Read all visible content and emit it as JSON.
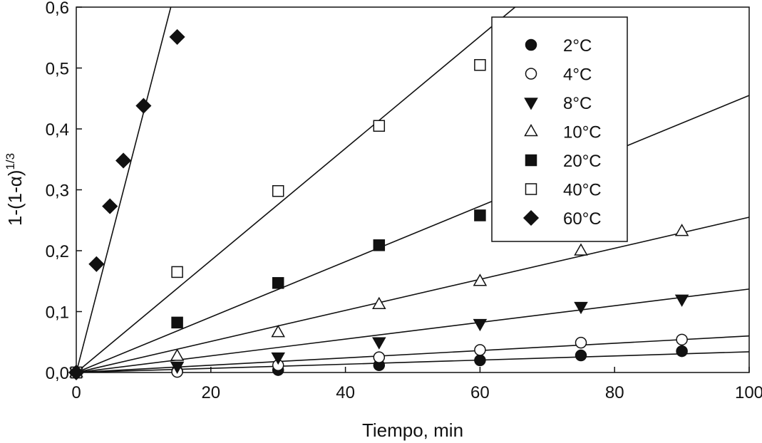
{
  "chart_data": {
    "type": "scatter",
    "title": "",
    "xlabel": "Tiempo, min",
    "ylabel_main": "1-(1-α)",
    "ylabel_exp": "1/3",
    "xlim": [
      0,
      100
    ],
    "ylim": [
      0,
      0.6
    ],
    "x_ticks": [
      0,
      20,
      40,
      60,
      80,
      100
    ],
    "x_tick_labels": [
      "0",
      "20",
      "40",
      "60",
      "80",
      "100"
    ],
    "y_ticks": [
      0,
      0.1,
      0.2,
      0.3,
      0.4,
      0.5,
      0.6
    ],
    "y_tick_labels": [
      "0,0",
      "0,1",
      "0,2",
      "0,3",
      "0,4",
      "0,5",
      "0,6"
    ],
    "grid": false,
    "legend_position": "top-right",
    "series": [
      {
        "name": "2°C",
        "marker": "circle-filled",
        "x": [
          0,
          15,
          30,
          45,
          60,
          75,
          90
        ],
        "y": [
          0,
          0.002,
          0.004,
          0.012,
          0.02,
          0.028,
          0.035
        ],
        "fit_slope": 0.00034
      },
      {
        "name": "4°C",
        "marker": "circle-open",
        "x": [
          0,
          15,
          30,
          45,
          60,
          75,
          90
        ],
        "y": [
          0,
          0.001,
          0.012,
          0.025,
          0.037,
          0.049,
          0.054
        ],
        "fit_slope": 0.0006
      },
      {
        "name": "8°C",
        "marker": "triangle-down-filled",
        "x": [
          0,
          15,
          30,
          45,
          60,
          75,
          90
        ],
        "y": [
          0,
          0.01,
          0.025,
          0.05,
          0.08,
          0.108,
          0.12
        ],
        "fit_slope": 0.00137
      },
      {
        "name": "10°C",
        "marker": "triangle-up-open",
        "x": [
          0,
          15,
          30,
          45,
          60,
          75,
          90
        ],
        "y": [
          0,
          0.027,
          0.066,
          0.112,
          0.15,
          0.2,
          0.232
        ],
        "fit_slope": 0.00255
      },
      {
        "name": "20°C",
        "marker": "square-filled",
        "x": [
          0,
          15,
          30,
          45,
          60
        ],
        "y": [
          0,
          0.082,
          0.147,
          0.209,
          0.258
        ],
        "fit_slope": 0.00455
      },
      {
        "name": "40°C",
        "marker": "square-open",
        "x": [
          0,
          15,
          30,
          45,
          60
        ],
        "y": [
          0,
          0.165,
          0.298,
          0.405,
          0.505
        ],
        "fit_slope": 0.0092
      },
      {
        "name": "60°C",
        "marker": "diamond-filled",
        "x": [
          0,
          3,
          5,
          7,
          10,
          15
        ],
        "y": [
          0,
          0.178,
          0.273,
          0.348,
          0.438,
          0.551
        ],
        "fit_slope": 0.0427
      }
    ]
  }
}
